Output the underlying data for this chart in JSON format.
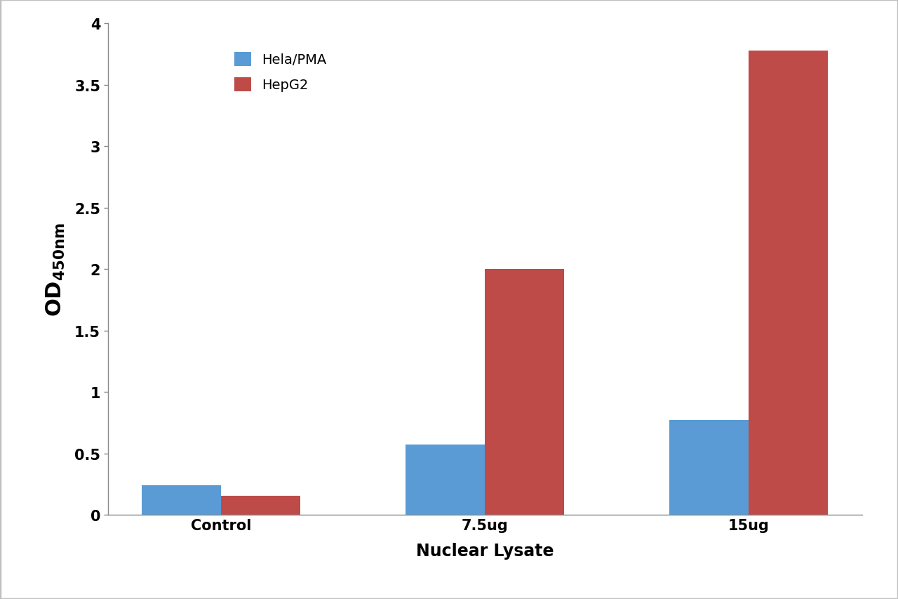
{
  "categories": [
    "Control",
    "7.5ug",
    "15ug"
  ],
  "hela_pma": [
    0.245,
    0.575,
    0.775
  ],
  "hepg2": [
    0.155,
    2.0,
    3.78
  ],
  "hela_color": "#5B9BD5",
  "hepg2_color": "#BE4B48",
  "xlabel": "Nuclear Lysate",
  "ylim": [
    0,
    4.0
  ],
  "yticks": [
    0,
    0.5,
    1,
    1.5,
    2,
    2.5,
    3,
    3.5,
    4
  ],
  "ytick_labels": [
    "0",
    "0.5",
    "1",
    "1.5",
    "2",
    "2.5",
    "3",
    "3.5",
    "4"
  ],
  "legend_labels": [
    "Hela/PMA",
    "HepG2"
  ],
  "bar_width": 0.3,
  "background_color": "#ffffff",
  "border_color": "#c0c0c0",
  "xlabel_fontsize": 17,
  "ylabel_fontsize": 22,
  "ylabel_sub_fontsize": 14,
  "tick_fontsize": 15,
  "legend_fontsize": 14,
  "spine_color": "#888888"
}
